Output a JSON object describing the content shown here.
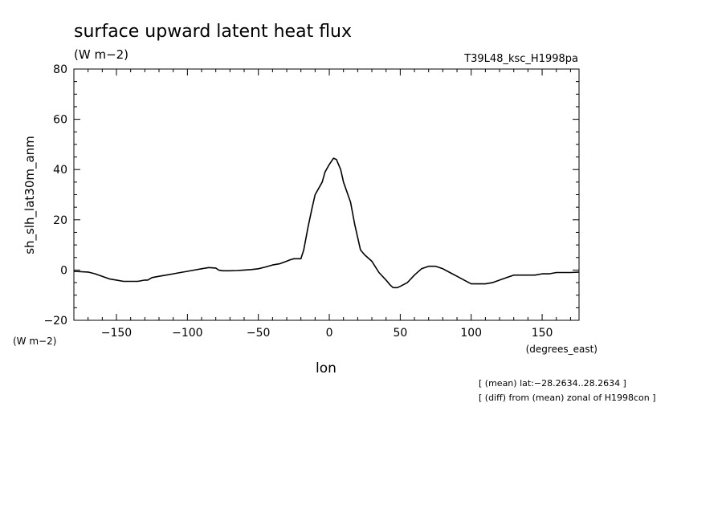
{
  "chart_data": {
    "type": "line",
    "title": "surface upward latent heat flux",
    "title_units": "(W m−2)",
    "run_label": "T39L48_ksc_H1998pa",
    "xlabel": "lon",
    "x_units": "(degrees_east)",
    "ylabel": "sh_slh_lat30m_anm",
    "y_units": "(W m−2)",
    "xlim": [
      -180,
      176
    ],
    "ylim": [
      -20,
      80
    ],
    "x_ticks": [
      -150,
      -100,
      -50,
      0,
      50,
      100,
      150
    ],
    "x_tick_labels": [
      "−150",
      "−100",
      "−50",
      "0",
      "50",
      "100",
      "150"
    ],
    "y_ticks": [
      80,
      60,
      40,
      20,
      0,
      -20
    ],
    "y_tick_labels": [
      "80",
      "60",
      "40",
      "20",
      "0",
      "−20"
    ],
    "grid": false,
    "notes": [
      "[ (mean) lat:−28.2634..28.2634 ]",
      "[ (diff) from (mean) zonal of H1998con ]"
    ],
    "series": [
      {
        "x": [
          -180,
          -170,
          -165,
          -160,
          -155,
          -150,
          -145,
          -140,
          -135,
          -130,
          -128,
          -125,
          -120,
          -115,
          -110,
          -105,
          -100,
          -95,
          -90,
          -85,
          -80,
          -78,
          -75,
          -70,
          -65,
          -60,
          -55,
          -50,
          -45,
          -40,
          -35,
          -30,
          -28,
          -25,
          -20,
          -18,
          -15,
          -12,
          -10,
          -5,
          -3,
          0,
          3,
          5,
          8,
          10,
          15,
          18,
          22,
          25,
          30,
          35,
          40,
          43,
          45,
          48,
          50,
          55,
          60,
          65,
          70,
          75,
          80,
          85,
          90,
          95,
          100,
          105,
          110,
          115,
          120,
          125,
          130,
          135,
          140,
          145,
          150,
          155,
          160,
          165,
          170,
          176
        ],
        "y": [
          -0.5,
          -0.8,
          -1.5,
          -2.5,
          -3.5,
          -4,
          -4.5,
          -4.5,
          -4.5,
          -4,
          -4,
          -3,
          -2.5,
          -2,
          -1.5,
          -1,
          -0.5,
          0,
          0.5,
          1,
          0.8,
          0,
          -0.3,
          -0.3,
          -0.2,
          0,
          0.2,
          0.5,
          1.2,
          2,
          2.5,
          3.5,
          4,
          4.5,
          4.5,
          8,
          17,
          25,
          30,
          35,
          39,
          42,
          44.5,
          44,
          40,
          35,
          27,
          18,
          8,
          6,
          3.5,
          -1,
          -4,
          -6,
          -7,
          -7,
          -6.5,
          -5,
          -2,
          0.5,
          1.5,
          1.5,
          0.5,
          -1,
          -2.5,
          -4,
          -5.5,
          -5.5,
          -5.5,
          -5,
          -4,
          -3,
          -2,
          -2,
          -2,
          -2,
          -1.5,
          -1.5,
          -1,
          -1,
          -1,
          -0.8
        ]
      }
    ]
  }
}
